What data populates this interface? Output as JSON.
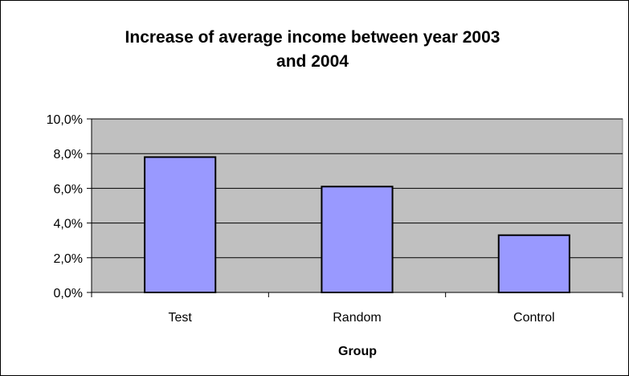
{
  "chart_data": {
    "type": "bar",
    "title_lines": [
      "Increase of average income between year 2003",
      "and 2004"
    ],
    "xlabel": "Group",
    "ylabel": "",
    "categories": [
      "Test",
      "Random",
      "Control"
    ],
    "values": [
      7.8,
      6.1,
      3.3
    ],
    "y_ticks": [
      "0,0%",
      "2,0%",
      "4,0%",
      "6,0%",
      "8,0%",
      "10,0%"
    ],
    "ylim": [
      0,
      10
    ],
    "grid": true,
    "legend": "none",
    "colors": {
      "bar_fill": "#9999ff",
      "bar_stroke": "#000000",
      "plot_background": "#c0c0c0",
      "gridline": "#000000"
    }
  }
}
